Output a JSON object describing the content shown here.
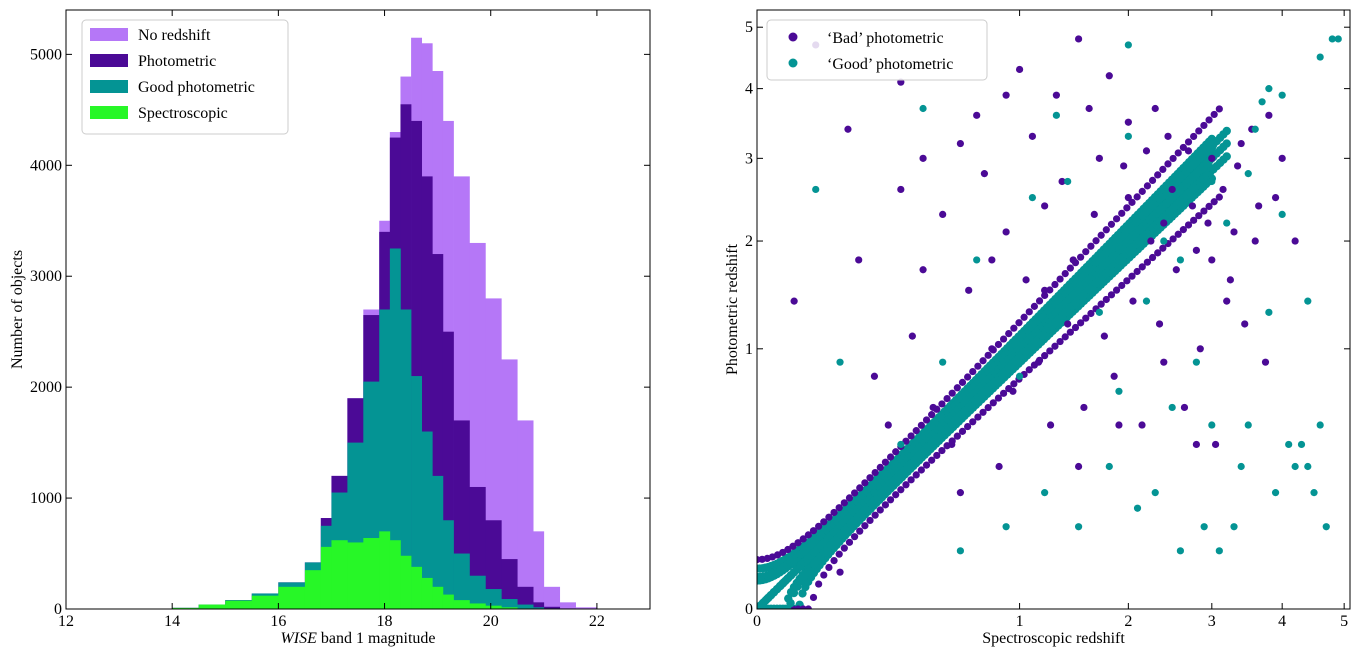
{
  "chart_data": [
    {
      "type": "bar",
      "subtype": "stacked-histogram",
      "xlabel_italic": "WISE",
      "xlabel_rest": " band 1 magnitude",
      "ylabel": "Number of objects",
      "xlim": [
        12,
        23
      ],
      "ylim": [
        0,
        5400
      ],
      "xticks": [
        12,
        14,
        16,
        18,
        20,
        22
      ],
      "yticks": [
        0,
        1000,
        2000,
        3000,
        4000,
        5000
      ],
      "legend_position": "top-left",
      "x": [
        13.5,
        14.0,
        14.5,
        15.0,
        15.5,
        16.0,
        16.5,
        16.8,
        17.0,
        17.3,
        17.6,
        17.9,
        18.1,
        18.3,
        18.5,
        18.7,
        18.9,
        19.1,
        19.3,
        19.6,
        19.9,
        20.2,
        20.5,
        20.8,
        21.0,
        21.3,
        21.6,
        22.0
      ],
      "series": [
        {
          "name": "No redshift",
          "color": "#b577f7",
          "values": [
            0,
            10,
            40,
            80,
            140,
            240,
            420,
            820,
            1200,
            1900,
            2700,
            3500,
            4300,
            4800,
            5150,
            5100,
            4850,
            4400,
            3900,
            3300,
            2800,
            2250,
            1700,
            700,
            200,
            60,
            15,
            0
          ]
        },
        {
          "name": "Photometric",
          "color": "#4b0a96",
          "values": [
            0,
            10,
            40,
            80,
            140,
            240,
            420,
            820,
            1200,
            1900,
            2650,
            3400,
            4250,
            4550,
            4400,
            3900,
            3200,
            2500,
            1700,
            1100,
            800,
            450,
            200,
            60,
            20,
            5,
            0,
            0
          ]
        },
        {
          "name": "Good photometric",
          "color": "#049494",
          "values": [
            0,
            10,
            40,
            80,
            140,
            240,
            420,
            750,
            1050,
            1500,
            2050,
            2700,
            3250,
            2700,
            2100,
            1600,
            1200,
            800,
            500,
            300,
            180,
            90,
            40,
            15,
            5,
            0,
            0,
            0
          ]
        },
        {
          "name": "Spectroscopic",
          "color": "#27f727",
          "values": [
            0,
            10,
            40,
            75,
            120,
            200,
            350,
            560,
            620,
            600,
            640,
            700,
            620,
            480,
            380,
            280,
            200,
            130,
            80,
            50,
            30,
            15,
            5,
            0,
            0,
            0,
            0,
            0
          ]
        }
      ]
    },
    {
      "type": "scatter",
      "xlabel": "Spectroscopic redshift",
      "ylabel": "Photometric redshift",
      "xlim": [
        0,
        5.1
      ],
      "ylim": [
        0,
        5.3
      ],
      "xticks": [
        0,
        1,
        2,
        3,
        4,
        5
      ],
      "yticks": [
        0,
        1,
        2,
        3,
        4,
        5
      ],
      "scale": "sqrt",
      "legend_position": "top-left",
      "series": [
        {
          "name": "‘Bad’ photometric",
          "color": "#4b0a96",
          "points": [
            [
              0.05,
              4.7
            ],
            [
              0.12,
              3.4
            ],
            [
              0.3,
              4.1
            ],
            [
              0.3,
              2.6
            ],
            [
              0.5,
              2.3
            ],
            [
              0.4,
              1.7
            ],
            [
              0.6,
              3.2
            ],
            [
              0.7,
              3.6
            ],
            [
              0.8,
              1.0
            ],
            [
              0.9,
              2.1
            ],
            [
              1.1,
              3.3
            ],
            [
              1.2,
              2.4
            ],
            [
              1.3,
              3.9
            ],
            [
              1.4,
              1.2
            ],
            [
              1.5,
              4.8
            ],
            [
              1.7,
              3.0
            ],
            [
              1.8,
              4.2
            ],
            [
              2.0,
              3.5
            ],
            [
              2.2,
              3.1
            ],
            [
              2.4,
              2.2
            ],
            [
              2.5,
              2.6
            ],
            [
              2.8,
              1.9
            ],
            [
              3.0,
              3.0
            ],
            [
              3.2,
              1.4
            ],
            [
              3.4,
              3.2
            ],
            [
              3.6,
              2.0
            ],
            [
              3.8,
              3.6
            ],
            [
              0.02,
              1.4
            ],
            [
              0.15,
              1.8
            ],
            [
              0.2,
              0.8
            ],
            [
              0.35,
              1.1
            ],
            [
              0.45,
              0.6
            ],
            [
              0.55,
              0.4
            ],
            [
              0.65,
              1.5
            ],
            [
              0.75,
              2.8
            ],
            [
              0.85,
              0.3
            ],
            [
              0.95,
              0.7
            ],
            [
              1.05,
              1.6
            ],
            [
              1.15,
              0.9
            ],
            [
              1.25,
              0.5
            ],
            [
              1.35,
              2.7
            ],
            [
              1.45,
              1.8
            ],
            [
              1.55,
              0.6
            ],
            [
              1.65,
              2.3
            ],
            [
              1.75,
              1.1
            ],
            [
              1.85,
              0.8
            ],
            [
              1.95,
              2.9
            ],
            [
              2.05,
              1.4
            ],
            [
              2.15,
              0.5
            ],
            [
              2.25,
              2.0
            ],
            [
              2.35,
              1.2
            ],
            [
              2.45,
              3.3
            ],
            [
              2.55,
              1.7
            ],
            [
              2.65,
              0.6
            ],
            [
              2.75,
              2.4
            ],
            [
              2.85,
              1.0
            ],
            [
              2.95,
              2.2
            ],
            [
              3.05,
              0.4
            ],
            [
              3.15,
              2.6
            ],
            [
              3.25,
              1.6
            ],
            [
              3.35,
              2.9
            ],
            [
              3.45,
              1.2
            ],
            [
              3.55,
              3.4
            ],
            [
              3.65,
              2.4
            ],
            [
              3.75,
              0.9
            ],
            [
              3.9,
              2.5
            ],
            [
              4.0,
              3.0
            ],
            [
              4.2,
              2.0
            ],
            [
              0.1,
              0.02
            ],
            [
              0.25,
              0.5
            ],
            [
              0.6,
              0.2
            ],
            [
              0.8,
              1.8
            ],
            [
              1.0,
              4.3
            ],
            [
              1.2,
              1.5
            ],
            [
              1.6,
              3.7
            ],
            [
              2.0,
              2.5
            ],
            [
              2.3,
              3.7
            ],
            [
              2.7,
              3.1
            ],
            [
              3.0,
              1.8
            ],
            [
              3.3,
              2.1
            ],
            [
              1.9,
              0.5
            ],
            [
              2.4,
              0.9
            ],
            [
              2.8,
              0.4
            ],
            [
              1.5,
              0.3
            ],
            [
              0.9,
              3.9
            ],
            [
              0.4,
              3.0
            ]
          ]
        },
        {
          "name": "‘Good’ photometric",
          "color": "#049494",
          "points": [
            [
              0.2,
              0.2
            ],
            [
              0.5,
              0.9
            ],
            [
              0.7,
              1.8
            ],
            [
              1.0,
              0.8
            ],
            [
              1.3,
              3.6
            ],
            [
              1.4,
              2.7
            ],
            [
              1.7,
              1.3
            ],
            [
              2.0,
              3.3
            ],
            [
              2.2,
              1.4
            ],
            [
              2.4,
              2.0
            ],
            [
              2.6,
              1.8
            ],
            [
              2.8,
              0.9
            ],
            [
              3.0,
              2.7
            ],
            [
              3.2,
              2.2
            ],
            [
              3.4,
              0.3
            ],
            [
              3.5,
              0.5
            ],
            [
              3.6,
              3.4
            ],
            [
              3.7,
              3.8
            ],
            [
              3.8,
              4.0
            ],
            [
              4.0,
              3.9
            ],
            [
              4.1,
              0.4
            ],
            [
              4.3,
              0.4
            ],
            [
              4.4,
              1.4
            ],
            [
              4.6,
              4.5
            ],
            [
              4.8,
              4.8
            ],
            [
              4.9,
              4.8
            ],
            [
              4.7,
              0.1
            ],
            [
              4.5,
              0.2
            ],
            [
              4.2,
              0.3
            ],
            [
              3.9,
              0.2
            ],
            [
              3.3,
              0.1
            ],
            [
              3.1,
              0.05
            ],
            [
              2.9,
              0.1
            ],
            [
              2.6,
              0.05
            ],
            [
              2.3,
              0.2
            ],
            [
              2.1,
              0.15
            ],
            [
              1.8,
              0.3
            ],
            [
              1.5,
              0.1
            ],
            [
              1.2,
              0.2
            ],
            [
              0.9,
              0.1
            ],
            [
              0.6,
              0.05
            ],
            [
              0.3,
              0.4
            ],
            [
              0.1,
              0.9
            ],
            [
              0.05,
              2.6
            ],
            [
              0.4,
              3.7
            ],
            [
              1.1,
              2.5
            ],
            [
              2.0,
              4.7
            ],
            [
              3.5,
              2.8
            ],
            [
              4.0,
              2.3
            ],
            [
              3.8,
              1.3
            ],
            [
              3.0,
              0.5
            ],
            [
              2.5,
              0.6
            ],
            [
              1.9,
              0.7
            ],
            [
              4.4,
              0.3
            ],
            [
              4.6,
              0.5
            ]
          ]
        }
      ],
      "dense_band": {
        "color": "#049494",
        "description_hidden": true
      }
    }
  ]
}
